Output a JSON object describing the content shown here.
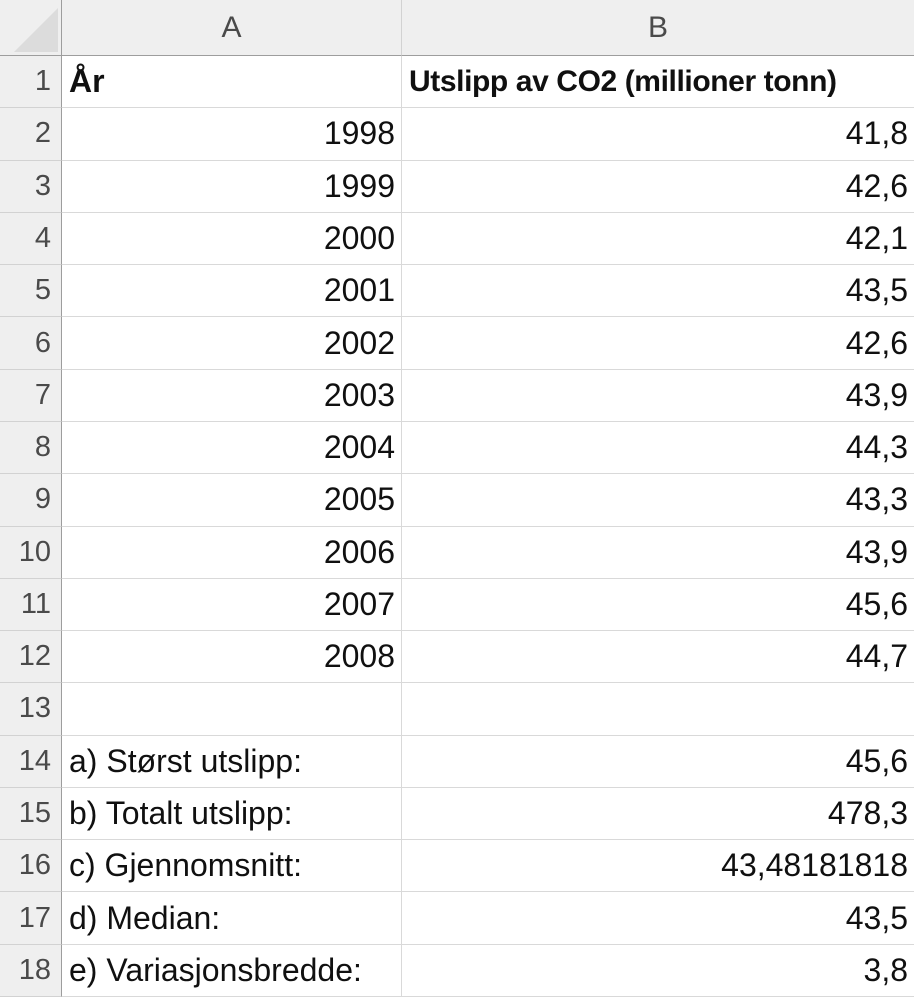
{
  "app": {
    "type": "spreadsheet",
    "visible_range": "A1:B18"
  },
  "colors": {
    "header_bg": "#efefef",
    "header_text": "#4a4a4a",
    "gridline": "#d9d9d9",
    "header_sep": "#d2d2d2",
    "header_edge": "#9d9d9d",
    "cell_text": "#101010",
    "cell_bg": "#ffffff",
    "triangle": "#dcdcdc"
  },
  "columns": [
    {
      "label": "A"
    },
    {
      "label": "B"
    }
  ],
  "rows": [
    {
      "num": "1",
      "a": "År",
      "b": "Utslipp av CO2 (millioner tonn)",
      "bold": true,
      "aAlign": "left",
      "bAlign": "left"
    },
    {
      "num": "2",
      "a": "1998",
      "b": "41,8",
      "bold": false,
      "aAlign": "right",
      "bAlign": "right"
    },
    {
      "num": "3",
      "a": "1999",
      "b": "42,6",
      "bold": false,
      "aAlign": "right",
      "bAlign": "right"
    },
    {
      "num": "4",
      "a": "2000",
      "b": "42,1",
      "bold": false,
      "aAlign": "right",
      "bAlign": "right"
    },
    {
      "num": "5",
      "a": "2001",
      "b": "43,5",
      "bold": false,
      "aAlign": "right",
      "bAlign": "right"
    },
    {
      "num": "6",
      "a": "2002",
      "b": "42,6",
      "bold": false,
      "aAlign": "right",
      "bAlign": "right"
    },
    {
      "num": "7",
      "a": "2003",
      "b": "43,9",
      "bold": false,
      "aAlign": "right",
      "bAlign": "right"
    },
    {
      "num": "8",
      "a": "2004",
      "b": "44,3",
      "bold": false,
      "aAlign": "right",
      "bAlign": "right"
    },
    {
      "num": "9",
      "a": "2005",
      "b": "43,3",
      "bold": false,
      "aAlign": "right",
      "bAlign": "right"
    },
    {
      "num": "10",
      "a": "2006",
      "b": "43,9",
      "bold": false,
      "aAlign": "right",
      "bAlign": "right"
    },
    {
      "num": "11",
      "a": "2007",
      "b": "45,6",
      "bold": false,
      "aAlign": "right",
      "bAlign": "right"
    },
    {
      "num": "12",
      "a": "2008",
      "b": "44,7",
      "bold": false,
      "aAlign": "right",
      "bAlign": "right"
    },
    {
      "num": "13",
      "a": "",
      "b": "",
      "bold": false,
      "aAlign": "left",
      "bAlign": "right"
    },
    {
      "num": "14",
      "a": "a) Størst utslipp:",
      "b": "45,6",
      "bold": false,
      "aAlign": "left",
      "bAlign": "right"
    },
    {
      "num": "15",
      "a": "b) Totalt utslipp:",
      "b": "478,3",
      "bold": false,
      "aAlign": "left",
      "bAlign": "right"
    },
    {
      "num": "16",
      "a": "c) Gjennomsnitt:",
      "b": "43,48181818",
      "bold": false,
      "aAlign": "left",
      "bAlign": "right"
    },
    {
      "num": "17",
      "a": "d) Median:",
      "b": "43,5",
      "bold": false,
      "aAlign": "left",
      "bAlign": "right"
    },
    {
      "num": "18",
      "a": "e) Variasjonsbredde:",
      "b": "3,8",
      "bold": false,
      "aAlign": "left",
      "bAlign": "right"
    }
  ]
}
